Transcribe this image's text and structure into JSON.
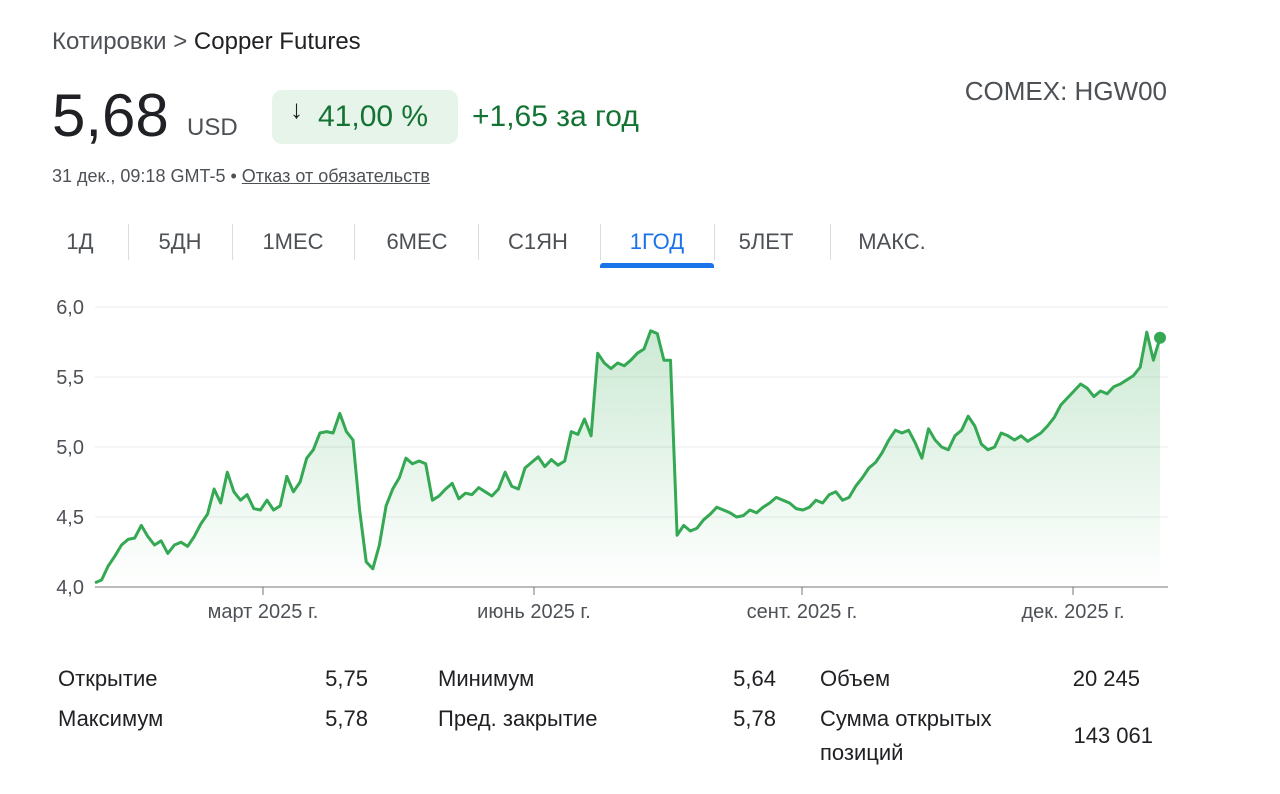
{
  "breadcrumb": {
    "root": "Котировки",
    "sep": ">",
    "current": "Copper Futures"
  },
  "quote": {
    "price": "5,68",
    "currency": "USD",
    "change_pct": "41,00 %",
    "change_abs": "+1,65 за год",
    "exchange_ticker": "COMEX: HGW00",
    "timestamp": "31 дек., 09:18 GMT-5 •",
    "disclaimer_link": "Отказ от обязательств"
  },
  "tabs": [
    {
      "label": "1Д"
    },
    {
      "label": "5ДН"
    },
    {
      "label": "1МЕС"
    },
    {
      "label": "6МЕС"
    },
    {
      "label": "С1ЯН"
    },
    {
      "label": "1ГОД",
      "active": true
    },
    {
      "label": "5ЛЕТ"
    },
    {
      "label": "МАКС."
    }
  ],
  "colors": {
    "positive": "#137333",
    "line": "#34a853",
    "accent": "#1a73e8"
  },
  "chart_data": {
    "type": "line",
    "ylim": [
      4.0,
      6.0
    ],
    "yticks": [
      "4,0",
      "4,5",
      "5,0",
      "5,5",
      "6,0"
    ],
    "xticks": [
      "март 2025 г.",
      "июнь 2025 г.",
      "сент. 2025 г.",
      "дек. 2025 г."
    ],
    "grid": true,
    "series": [
      {
        "values": [
          4.03,
          4.05,
          4.15,
          4.22,
          4.3,
          4.34,
          4.35,
          4.44,
          4.36,
          4.3,
          4.33,
          4.24,
          4.3,
          4.32,
          4.29,
          4.36,
          4.45,
          4.52,
          4.7,
          4.6,
          4.82,
          4.68,
          4.62,
          4.66,
          4.56,
          4.55,
          4.62,
          4.55,
          4.58,
          4.79,
          4.68,
          4.75,
          4.92,
          4.98,
          5.1,
          5.11,
          5.1,
          5.24,
          5.11,
          5.05,
          4.55,
          4.18,
          4.13,
          4.3,
          4.58,
          4.7,
          4.78,
          4.92,
          4.88,
          4.9,
          4.88,
          4.62,
          4.65,
          4.7,
          4.74,
          4.63,
          4.67,
          4.66,
          4.71,
          4.68,
          4.65,
          4.7,
          4.82,
          4.72,
          4.7,
          4.85,
          4.89,
          4.93,
          4.86,
          4.91,
          4.87,
          4.9,
          5.11,
          5.09,
          5.2,
          5.08,
          5.67,
          5.6,
          5.56,
          5.6,
          5.58,
          5.62,
          5.67,
          5.7,
          5.83,
          5.81,
          5.62,
          5.62,
          4.37,
          4.44,
          4.4,
          4.42,
          4.48,
          4.52,
          4.57,
          4.55,
          4.53,
          4.5,
          4.51,
          4.55,
          4.53,
          4.57,
          4.6,
          4.64,
          4.62,
          4.6,
          4.56,
          4.55,
          4.57,
          4.62,
          4.6,
          4.66,
          4.68,
          4.62,
          4.64,
          4.72,
          4.78,
          4.85,
          4.89,
          4.96,
          5.05,
          5.12,
          5.1,
          5.12,
          5.03,
          4.92,
          5.13,
          5.05,
          5.0,
          4.98,
          5.08,
          5.12,
          5.22,
          5.15,
          5.02,
          4.98,
          5.0,
          5.1,
          5.08,
          5.05,
          5.08,
          5.04,
          5.07,
          5.1,
          5.15,
          5.21,
          5.3,
          5.35,
          5.4,
          5.45,
          5.42,
          5.36,
          5.4,
          5.38,
          5.43,
          5.45,
          5.48,
          5.51,
          5.57,
          5.82,
          5.62,
          5.78
        ]
      }
    ]
  },
  "stats": {
    "open_label": "Открытие",
    "open_value": "5,75",
    "high_label": "Максимум",
    "high_value": "5,78",
    "low_label": "Минимум",
    "low_value": "5,64",
    "prev_close_label": "Пред. закрытие",
    "prev_close_value": "5,78",
    "volume_label": "Объем",
    "volume_value": "20 245",
    "oi_label_1": "Сумма открытых",
    "oi_label_2": "позиций",
    "oi_value": "143 061"
  }
}
